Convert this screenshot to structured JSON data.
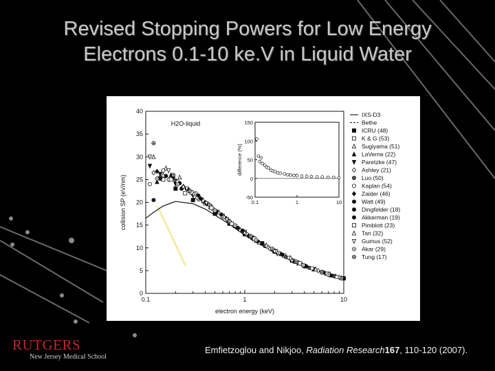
{
  "slide": {
    "title_line1": "Revised Stopping Powers for Low Energy",
    "title_line2": "Electrons 0.1-10 ke.V in Liquid Water",
    "citation_authors": "Emfietzoglou and Nikjoo, ",
    "citation_journal": "Radiation Research",
    "citation_volume": "167",
    "citation_pages": ", 110-120 (2007).",
    "logo_name": "RUTGERS",
    "logo_subtitle": "New Jersey Medical School"
  },
  "colors": {
    "background": "#000000",
    "title_text": "#c8c8c8",
    "highlight_line": "#f5eba8",
    "logo_red": "#c1272d"
  },
  "chart_data": {
    "type": "scatter",
    "title": "",
    "annotation": "H2O-liquid",
    "xlabel": "electron energy (keV)",
    "ylabel": "collision SP (eV/nm)",
    "xscale": "log",
    "xlim": [
      0.1,
      10
    ],
    "ylim": [
      0,
      40
    ],
    "x_ticks": [
      0.1,
      1,
      10
    ],
    "x_tick_labels": [
      "0.1",
      "1",
      "10"
    ],
    "y_ticks": [
      0,
      5,
      10,
      15,
      20,
      25,
      30,
      35,
      40
    ],
    "y_tick_labels": [
      "0",
      "5",
      "10",
      "15",
      "20",
      "25",
      "30",
      "35",
      "40"
    ],
    "legend_position": "right",
    "series": [
      {
        "name": "IXS-D3",
        "style": "solid",
        "x": [
          0.1,
          0.12,
          0.15,
          0.2,
          0.3,
          0.4,
          0.5,
          0.7,
          1,
          1.5,
          2,
          3,
          5,
          7,
          10
        ],
        "y": [
          16.5,
          17.8,
          19.2,
          20.2,
          19.7,
          18.5,
          17.2,
          15.2,
          12.8,
          10.5,
          9.0,
          7.1,
          5.2,
          4.2,
          3.2
        ]
      },
      {
        "name": "Bethe",
        "style": "dashed",
        "x": [
          0.3,
          0.4,
          0.5,
          0.7,
          1,
          1.5,
          2,
          3,
          5,
          7,
          10
        ],
        "y": [
          21.0,
          19.5,
          18.2,
          15.8,
          13.2,
          10.7,
          9.1,
          7.1,
          5.2,
          4.2,
          3.2
        ]
      },
      {
        "name": "ICRU (48)",
        "marker": "square-filled",
        "x": [
          0.2,
          0.3,
          0.5,
          0.7,
          1,
          2,
          3,
          5,
          10
        ],
        "y": [
          23.0,
          20.5,
          17.5,
          15.3,
          13.0,
          9.2,
          7.2,
          5.3,
          3.3
        ]
      },
      {
        "name": "K & G (53)",
        "marker": "square-open",
        "x": [
          0.15,
          0.25,
          0.4,
          0.6,
          1,
          1.5,
          2.5,
          4,
          7
        ],
        "y": [
          25.0,
          22.0,
          19.8,
          17.0,
          13.5,
          11.0,
          8.3,
          6.0,
          4.3
        ]
      },
      {
        "name": "Sugiyama (51)",
        "marker": "triangle-up-open",
        "x": [
          0.12,
          0.16,
          0.22,
          0.35,
          0.55,
          0.9,
          1.4,
          2.2,
          3.5,
          6
        ],
        "y": [
          30.0,
          27.5,
          25.5,
          21.2,
          17.8,
          14.0,
          11.2,
          8.7,
          6.6,
          4.7
        ]
      },
      {
        "name": "LaVerne (22)",
        "marker": "triangle-up-filled",
        "x": [
          0.13,
          0.18,
          0.28,
          0.45,
          0.8,
          1.3,
          2,
          3.2,
          5
        ],
        "y": [
          24.5,
          26.0,
          22.5,
          19.0,
          14.8,
          11.6,
          9.3,
          7.0,
          5.3
        ]
      },
      {
        "name": "Paretzke (47)",
        "marker": "triangle-down-filled",
        "x": [
          0.11,
          0.14,
          0.2,
          0.3,
          0.5,
          0.8,
          1.2,
          2,
          4,
          8
        ],
        "y": [
          28.0,
          26.2,
          24.0,
          21.5,
          18.0,
          14.8,
          12.2,
          9.2,
          6.0,
          3.8
        ]
      },
      {
        "name": "Ashley (21)",
        "marker": "diamond-open",
        "x": [
          0.12,
          0.17,
          0.24,
          0.33,
          0.5,
          0.75,
          1.1,
          1.8,
          3,
          5.5,
          9
        ],
        "y": [
          26.5,
          25.0,
          23.5,
          21.0,
          18.2,
          15.2,
          12.6,
          9.8,
          7.3,
          5.0,
          3.5
        ]
      },
      {
        "name": "Luo (50)",
        "marker": "circle-half",
        "x": [
          0.14,
          0.2,
          0.3,
          0.45,
          0.7,
          1,
          1.6,
          2.6,
          4.5,
          8
        ],
        "y": [
          25.5,
          24.8,
          21.8,
          19.2,
          15.6,
          13.3,
          10.4,
          8.0,
          5.6,
          3.8
        ]
      },
      {
        "name": "Kaplan (54)",
        "marker": "circle-open",
        "x": [
          0.11,
          0.15,
          0.21,
          0.32,
          0.48,
          0.72,
          1.05,
          1.7,
          2.8,
          4.8,
          8.5
        ],
        "y": [
          24.0,
          27.0,
          24.5,
          22.0,
          18.5,
          15.5,
          13.0,
          10.2,
          7.8,
          5.5,
          3.6
        ]
      },
      {
        "name": "Zaider (46)",
        "marker": "diamond-filled",
        "x": [
          0.13,
          0.19,
          0.27,
          0.4,
          0.65,
          1.2,
          2.1,
          3.8,
          6.5
        ],
        "y": [
          26.8,
          25.5,
          22.8,
          20.0,
          16.5,
          12.0,
          9.0,
          6.3,
          4.4
        ]
      },
      {
        "name": "Watt (49)",
        "marker": "circle-filled",
        "x": [
          0.12,
          0.23,
          0.36,
          0.58,
          0.95,
          1.5,
          2.4,
          4.2,
          7.5
        ],
        "y": [
          20.5,
          23.0,
          20.8,
          17.3,
          13.8,
          11.0,
          8.5,
          5.9,
          3.9
        ]
      },
      {
        "name": "Dingfelder (18)",
        "marker": "circle-filled",
        "x": [
          0.16,
          0.26,
          0.42,
          0.68,
          1.1,
          1.9,
          3.3,
          6.2
        ],
        "y": [
          25.8,
          23.0,
          19.6,
          16.0,
          12.6,
          9.6,
          6.9,
          4.6
        ]
      },
      {
        "name": "Akkerman (19)",
        "marker": "circle-filled",
        "x": [
          0.14,
          0.22,
          0.34,
          0.52,
          0.85,
          1.35,
          2.3,
          4,
          7.2
        ],
        "y": [
          25.2,
          24.2,
          21.5,
          18.0,
          14.4,
          11.4,
          8.7,
          6.1,
          4.0
        ]
      },
      {
        "name": "Pimblott (23)",
        "marker": "square-open",
        "x": [
          0.18,
          0.29,
          0.46,
          0.74,
          1.25,
          2.05,
          3.6,
          6.8
        ],
        "y": [
          25.0,
          22.2,
          18.8,
          15.3,
          12.0,
          9.3,
          6.6,
          4.3
        ]
      },
      {
        "name": "Tan (32)",
        "marker": "triangle-up-open",
        "x": [
          0.15,
          0.24,
          0.38,
          0.62,
          1,
          1.65,
          2.9,
          5.2,
          9.5
        ],
        "y": [
          26.0,
          23.5,
          20.5,
          16.8,
          13.4,
          10.6,
          7.8,
          5.3,
          3.4
        ]
      },
      {
        "name": "Gumus (52)",
        "marker": "triangle-down-open",
        "x": [
          0.11,
          0.17,
          0.26,
          0.41,
          0.66,
          1.15,
          2,
          3.4,
          6
        ],
        "y": [
          30.0,
          27.0,
          23.0,
          19.8,
          16.2,
          12.3,
          9.2,
          6.8,
          4.6
        ]
      },
      {
        "name": "Akar (29)",
        "marker": "circle-dot",
        "x": [
          0.13,
          0.21,
          0.31,
          0.5,
          0.8,
          1.3,
          2.2,
          3.9,
          7
        ],
        "y": [
          25.2,
          24.0,
          21.8,
          18.2,
          14.9,
          11.7,
          8.9,
          6.2,
          4.1
        ]
      },
      {
        "name": "Tung (17)",
        "marker": "circle-cross",
        "x": [
          0.12,
          0.19,
          0.28,
          0.44,
          0.7,
          1.15,
          1.9,
          3.3,
          6,
          9.5
        ],
        "y": [
          33.0,
          26.0,
          22.5,
          19.5,
          15.9,
          12.6,
          9.8,
          7.0,
          4.6,
          3.3
        ]
      }
    ],
    "inset": {
      "ylabel": "difference (%)",
      "xscale": "log",
      "xlim": [
        0.1,
        10
      ],
      "ylim": [
        -50,
        150
      ],
      "x_ticks": [
        0.1,
        1,
        10
      ],
      "x_tick_labels": [
        "0.1",
        "1",
        "10"
      ],
      "y_ticks": [
        -50,
        0,
        50,
        100,
        150
      ],
      "y_tick_labels": [
        "-50",
        "0",
        "50",
        "100",
        "150"
      ],
      "x": [
        0.11,
        0.12,
        0.13,
        0.14,
        0.15,
        0.17,
        0.19,
        0.21,
        0.24,
        0.27,
        0.3,
        0.35,
        0.4,
        0.5,
        0.6,
        0.7,
        0.85,
        1,
        1.3,
        1.7,
        2.2,
        3,
        4,
        5.5,
        7.5,
        10
      ],
      "y": [
        105,
        60,
        45,
        55,
        40,
        35,
        30,
        28,
        22,
        20,
        18,
        15,
        14,
        12,
        10,
        9,
        8,
        8,
        6,
        6,
        5,
        4,
        4,
        3,
        3,
        2
      ]
    }
  }
}
